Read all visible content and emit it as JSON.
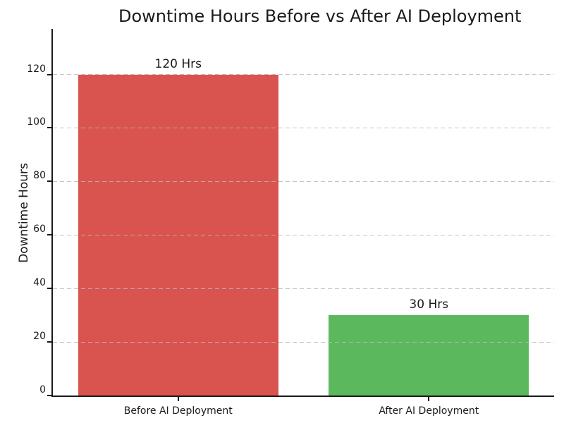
{
  "chart_data": {
    "type": "bar",
    "title": "Downtime Hours Before vs After AI Deployment",
    "xlabel": "",
    "ylabel": "Downtime Hours",
    "categories": [
      "Before AI Deployment",
      "After AI Deployment"
    ],
    "values": [
      120,
      30
    ],
    "bar_value_labels": [
      "120 Hrs",
      "30 Hrs"
    ],
    "bar_colors": [
      "#d9534f",
      "#5cb85c"
    ],
    "yticks": [
      0,
      20,
      40,
      60,
      80,
      100,
      120
    ],
    "ylim": [
      0,
      137
    ],
    "grid": "horizontal-dashed",
    "grid_color": "#b9b9b9",
    "legend": "none",
    "background_color": "#ffffff",
    "title_color": "#1a1a1a",
    "axis_color": "#1a1a1a"
  }
}
